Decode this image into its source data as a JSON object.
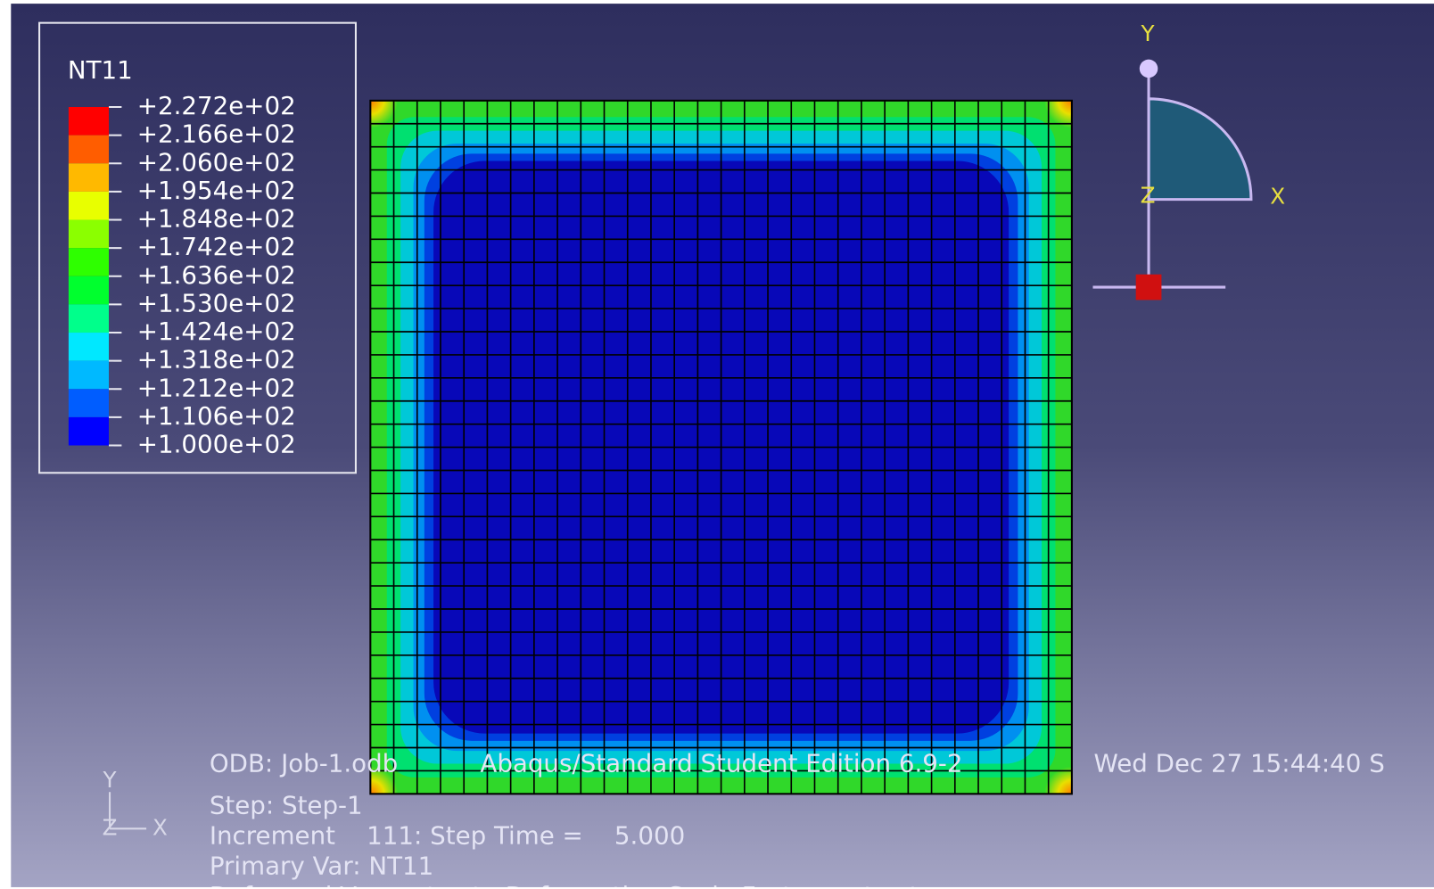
{
  "legend": {
    "title": "NT11",
    "labels": [
      "+2.272e+02",
      "+2.166e+02",
      "+2.060e+02",
      "+1.954e+02",
      "+1.848e+02",
      "+1.742e+02",
      "+1.636e+02",
      "+1.530e+02",
      "+1.424e+02",
      "+1.318e+02",
      "+1.212e+02",
      "+1.106e+02",
      "+1.000e+02"
    ],
    "colors": [
      "#ff0000",
      "#ff5d00",
      "#ffb900",
      "#e8ff00",
      "#8bff00",
      "#2eff00",
      "#00ff2e",
      "#00ff8b",
      "#00e8ff",
      "#00b9ff",
      "#005dff",
      "#0000ff"
    ]
  },
  "triad": {
    "y": "Y",
    "x": "X",
    "z": "Z"
  },
  "mini_triad": {
    "y": "Y",
    "x": "X",
    "z": "Z"
  },
  "info": {
    "odb": "ODB: Job-1.odb",
    "edition": "Abaqus/Standard Student Edition 6.9-2",
    "date": "Wed Dec 27 15:44:40 S",
    "step": "Step: Step-1",
    "increment": "Increment    111: Step Time =    5.000",
    "primary": "Primary Var: NT11",
    "deformed": "Deformed Var: not set   Deformation Scale Factor: not set"
  }
}
